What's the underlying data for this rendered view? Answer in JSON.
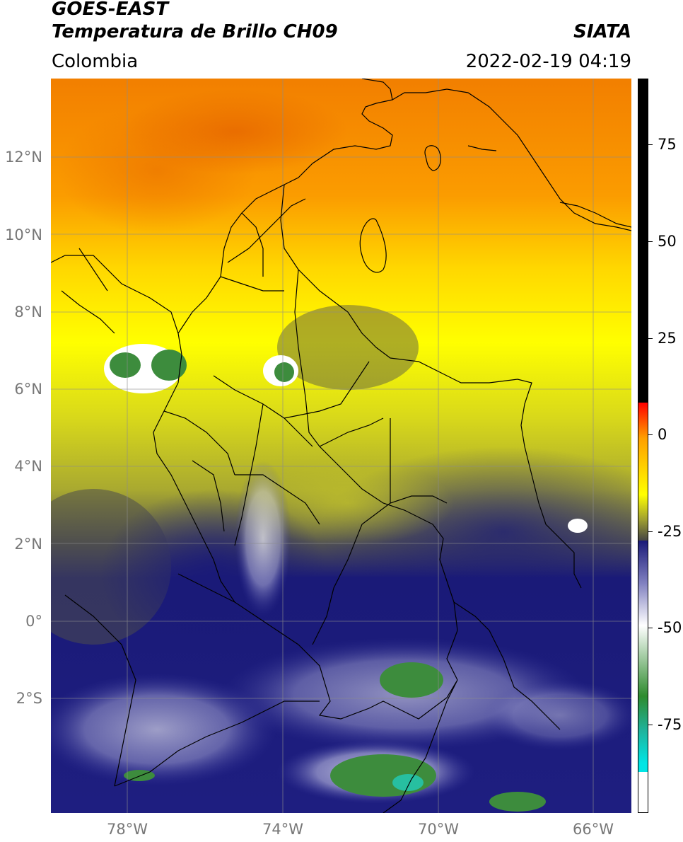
{
  "header": {
    "satellite": "GOES-EAST",
    "product": "Temperatura de Brillo CH09",
    "region": "Colombia",
    "brand": "SIATA",
    "timestamp": "2022-02-19 04:19"
  },
  "map": {
    "lat_labels": [
      "12°N",
      "10°N",
      "8°N",
      "6°N",
      "4°N",
      "2°N",
      "0°",
      "2°S"
    ],
    "lon_labels": [
      "78°W",
      "74°W",
      "70°W",
      "66°W"
    ],
    "colors": {
      "warm_orange": "#f07a00",
      "orange": "#fb9a00",
      "yellow": "#ffff00",
      "olive": "#a9a930",
      "dark_gray": "#4d4d4d",
      "navy": "#1a1a78",
      "blue": "#3c3ca0",
      "white": "#f4f4f8",
      "green": "#3d8c3d",
      "teal": "#27bfa0"
    }
  },
  "colorbar": {
    "labels": [
      "75",
      "50",
      "25",
      "0",
      "-25",
      "-50",
      "-75"
    ],
    "colors": [
      "#000000",
      "#ff0000",
      "#ff9f00",
      "#ffff00",
      "#a0a030",
      "#444444",
      "#1a1a78",
      "#8080c0",
      "#ffffff",
      "#2e8b2e",
      "#20b29a",
      "#00e5e5",
      "#ffffff"
    ]
  }
}
